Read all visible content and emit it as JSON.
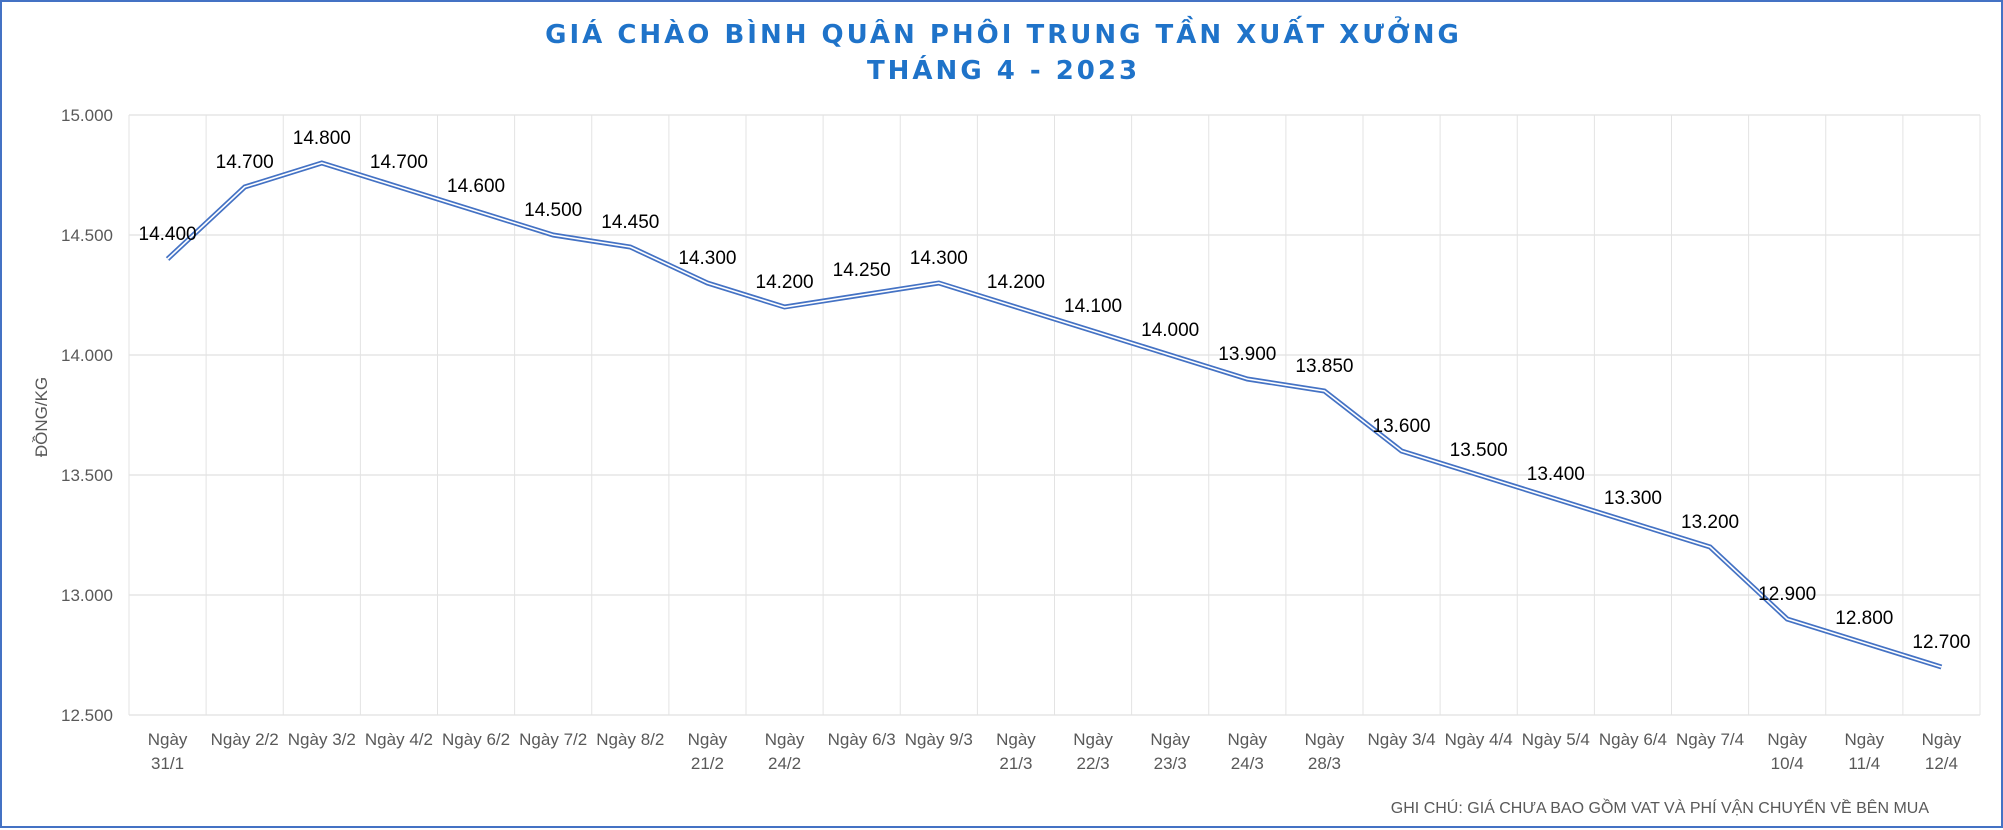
{
  "chart_data": {
    "type": "line",
    "title": "GIÁ CHÀO BÌNH QUÂN PHÔI TRUNG TẦN XUẤT XƯỞNG",
    "subtitle": "THÁNG 4 - 2023",
    "xlabel": "",
    "ylabel": "ĐỒNG/KG",
    "ylim": [
      12500,
      15000
    ],
    "yticks": [
      12500,
      13000,
      13500,
      14000,
      14500,
      15000
    ],
    "ytick_labels": [
      "12.500",
      "13.000",
      "13.500",
      "14.000",
      "14.500",
      "15.000"
    ],
    "grid": true,
    "legend": "none",
    "categories": [
      [
        "Ngày",
        "31/1"
      ],
      [
        "Ngày 2/2"
      ],
      [
        "Ngày 3/2"
      ],
      [
        "Ngày 4/2"
      ],
      [
        "Ngày 6/2"
      ],
      [
        "Ngày 7/2"
      ],
      [
        "Ngày 8/2"
      ],
      [
        "Ngày",
        "21/2"
      ],
      [
        "Ngày",
        "24/2"
      ],
      [
        "Ngày 6/3"
      ],
      [
        "Ngày 9/3"
      ],
      [
        "Ngày",
        "21/3"
      ],
      [
        "Ngày",
        "22/3"
      ],
      [
        "Ngày",
        "23/3"
      ],
      [
        "Ngày",
        "24/3"
      ],
      [
        "Ngày",
        "28/3"
      ],
      [
        "Ngày 3/4"
      ],
      [
        "Ngày 4/4"
      ],
      [
        "Ngày 5/4"
      ],
      [
        "Ngày 6/4"
      ],
      [
        "Ngày 7/4"
      ],
      [
        "Ngày",
        "10/4"
      ],
      [
        "Ngày",
        "11/4"
      ],
      [
        "Ngày",
        "12/4"
      ]
    ],
    "values": [
      14400,
      14700,
      14800,
      14700,
      14600,
      14500,
      14450,
      14300,
      14200,
      14250,
      14300,
      14200,
      14100,
      14000,
      13900,
      13850,
      13600,
      13500,
      13400,
      13300,
      13200,
      12900,
      12800,
      12700
    ],
    "value_labels": [
      "14.400",
      "14.700",
      "14.800",
      "14.700",
      "14.600",
      "14.500",
      "14.450",
      "14.300",
      "14.200",
      "14.250",
      "14.300",
      "14.200",
      "14.100",
      "14.000",
      "13.900",
      "13.850",
      "13.600",
      "13.500",
      "13.400",
      "13.300",
      "13.200",
      "12.900",
      "12.800",
      "12.700"
    ],
    "line_color": "#4472c4",
    "title_color": "#1f73c9"
  },
  "note": "GHI CHÚ: GIÁ CHƯA BAO GỒM VAT VÀ PHÍ VẬN CHUYỂN VỀ BÊN MUA"
}
